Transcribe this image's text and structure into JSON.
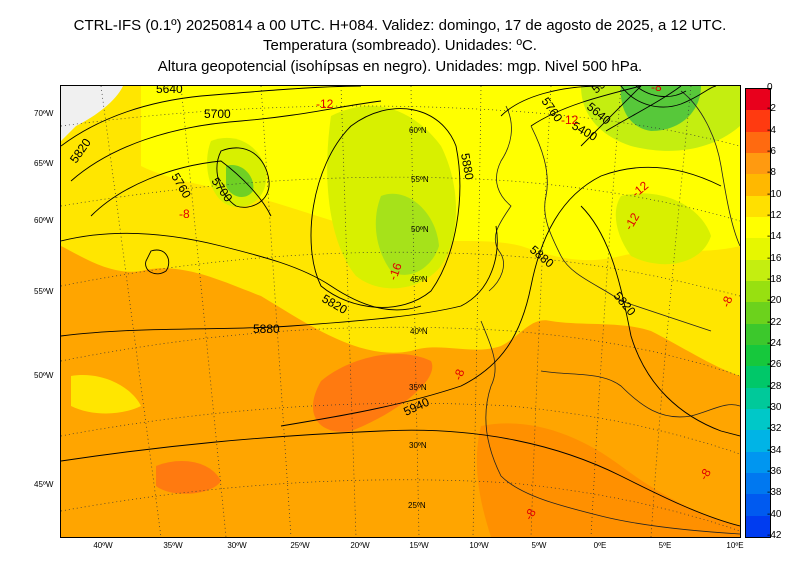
{
  "header": {
    "line1": "CTRL-IFS (0.1º) 20250814 a 00 UTC. H+084. Validez: domingo, 17 de agosto de 2025, a 12 UTC.",
    "line2": "Temperatura (sombreado). Unidades: ºC.",
    "line3": "Altura geopotencial (isohípsas en negro). Unidades: mgp. Nivel 500 hPa."
  },
  "map": {
    "y_axis_labels": [
      "70ºW",
      "65ºW",
      "60ºW",
      "55ºW",
      "50ºW",
      "45ºW"
    ],
    "x_axis_labels": [
      "40ºW",
      "35ºW",
      "30ºW",
      "25ºW",
      "20ºW",
      "15ºW",
      "10ºW",
      "5ºW",
      "0ºE",
      "5ºE",
      "10ºE"
    ],
    "lat_labels": [
      "60ºN",
      "55ºN",
      "50ºN",
      "45ºN",
      "40ºN",
      "35ºN",
      "30ºN",
      "25ºN"
    ],
    "geopotential_labels": [
      "5640",
      "5700",
      "5820",
      "5760",
      "5700",
      "5820",
      "5880",
      "5940",
      "5880",
      "5880",
      "5820",
      "5760",
      "5640",
      "5580",
      "5400"
    ],
    "temperature_labels": [
      "-12",
      "-8",
      "-16",
      "-8",
      "-8",
      "-12",
      "-12",
      "-12",
      "-8",
      "-8",
      "-8"
    ]
  },
  "colorbar": {
    "labels": [
      "0",
      "-2",
      "-4",
      "-6",
      "-8",
      "-10",
      "-12",
      "-14",
      "-16",
      "-18",
      "-20",
      "-22",
      "-24",
      "-26",
      "-28",
      "-30",
      "-32",
      "-34",
      "-36",
      "-38",
      "-40",
      "-42"
    ],
    "colors": [
      "#e8001c",
      "#ff3a10",
      "#ff6a10",
      "#ff9a10",
      "#ffb800",
      "#ffe000",
      "#ffff00",
      "#e6f700",
      "#c4ee10",
      "#98e010",
      "#6cd21c",
      "#3cc82c",
      "#16c83c",
      "#00c869",
      "#00c99a",
      "#00c8c8",
      "#00b4e6",
      "#0096f0",
      "#0078f0",
      "#005af0",
      "#003cf0",
      "#0014f0"
    ]
  }
}
